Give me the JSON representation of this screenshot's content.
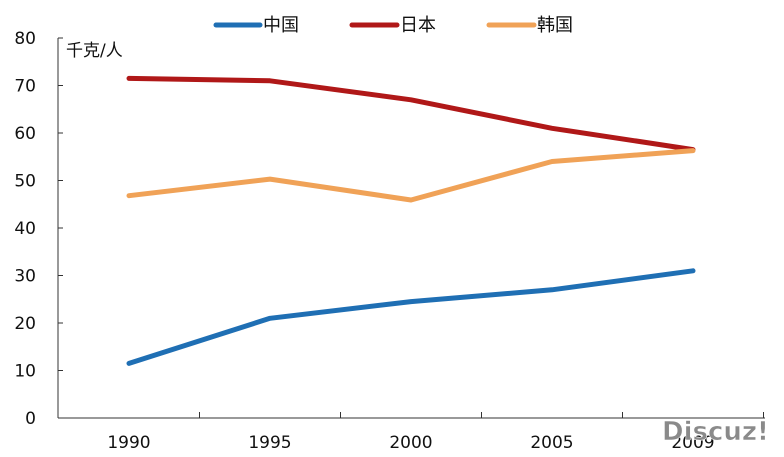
{
  "chart_data": {
    "type": "line",
    "x": [
      "1990",
      "1995",
      "2000",
      "2005",
      "2009"
    ],
    "series": [
      {
        "name": "中国",
        "color": "#1f6fb4",
        "values": [
          11.5,
          21,
          24.5,
          27,
          31
        ]
      },
      {
        "name": "日本",
        "color": "#b01818",
        "values": [
          71.5,
          71,
          67,
          61,
          56.5
        ]
      },
      {
        "name": "韩国",
        "color": "#f0a257",
        "values": [
          46.8,
          50.3,
          45.9,
          54,
          56.3
        ]
      }
    ],
    "ylabel": "千克/人",
    "ylim": [
      0,
      80
    ],
    "yticks": [
      "0",
      "10",
      "20",
      "30",
      "40",
      "50",
      "60",
      "70",
      "80"
    ],
    "xticks": [
      "1990",
      "1995",
      "2000",
      "2005",
      "2009"
    ],
    "grid": false,
    "legend_position": "top"
  },
  "watermark": {
    "text": "Discuz!"
  }
}
